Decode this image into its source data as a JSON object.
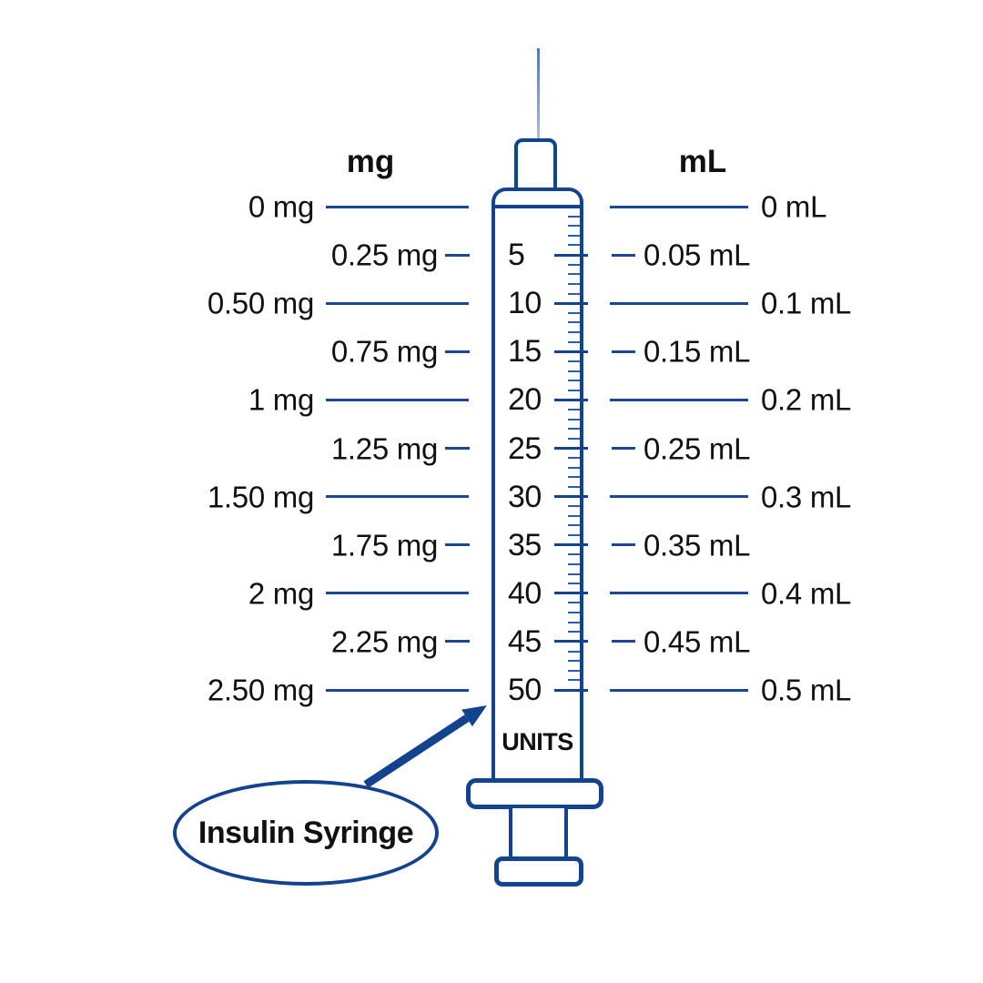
{
  "header": {
    "left": "mg",
    "right": "mL"
  },
  "syringe": {
    "units_caption": "UNITS",
    "callout_label": "Insulin Syringe"
  },
  "rows": [
    {
      "units": "",
      "mg": "0 mg",
      "ml": "0 mL",
      "emphasis": "long"
    },
    {
      "units": "5",
      "mg": "0.25 mg",
      "ml": "0.05 mL",
      "emphasis": "short"
    },
    {
      "units": "10",
      "mg": "0.50 mg",
      "ml": "0.1 mL",
      "emphasis": "long"
    },
    {
      "units": "15",
      "mg": "0.75 mg",
      "ml": "0.15 mL",
      "emphasis": "short"
    },
    {
      "units": "20",
      "mg": "1 mg",
      "ml": "0.2 mL",
      "emphasis": "long"
    },
    {
      "units": "25",
      "mg": "1.25 mg",
      "ml": "0.25 mL",
      "emphasis": "short"
    },
    {
      "units": "30",
      "mg": "1.50 mg",
      "ml": "0.3 mL",
      "emphasis": "long"
    },
    {
      "units": "35",
      "mg": "1.75 mg",
      "ml": "0.35 mL",
      "emphasis": "short"
    },
    {
      "units": "40",
      "mg": "2 mg",
      "ml": "0.4 mL",
      "emphasis": "long"
    },
    {
      "units": "45",
      "mg": "2.25 mg",
      "ml": "0.45 mL",
      "emphasis": "short"
    },
    {
      "units": "50",
      "mg": "2.50 mg",
      "ml": "0.5 mL",
      "emphasis": "long"
    }
  ],
  "scale": {
    "minor_ticks_per_major": 5,
    "max_units": 50
  },
  "colors": {
    "navy": "#14438e",
    "connector_line": "#1d4890",
    "minor_tick": "#2d5cab",
    "needle_top": "#4d79b6",
    "needle_bottom": "#a9c0e0",
    "text": "#111111"
  }
}
